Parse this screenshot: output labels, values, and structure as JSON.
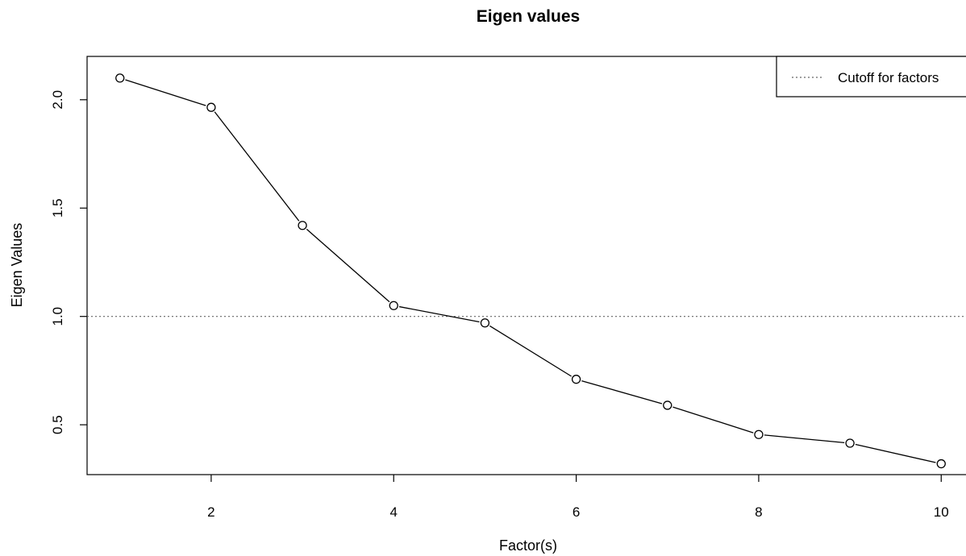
{
  "chart_data": {
    "type": "line",
    "title": "Eigen values",
    "xlabel": "Factor(s)",
    "ylabel": "Eigen Values",
    "x": [
      1,
      2,
      3,
      4,
      5,
      6,
      7,
      8,
      9,
      10
    ],
    "series": [
      {
        "values": [
          2.1,
          1.965,
          1.42,
          1.05,
          0.97,
          0.71,
          0.59,
          0.455,
          0.415,
          0.32
        ]
      }
    ],
    "xlim": [
      0.64,
      10.36
    ],
    "ylim": [
      0.27,
      2.2
    ],
    "x_ticks": [
      2,
      4,
      6,
      8,
      10
    ],
    "y_ticks": [
      0.5,
      1.0,
      1.5,
      2.0
    ],
    "y_tick_labels": [
      "0.5",
      "1.0",
      "1.5",
      "2.0"
    ],
    "reference_line": {
      "y": 1.0,
      "style": "dotted",
      "label": "Cutoff for factors"
    },
    "legend": {
      "position": "top-right",
      "entries": [
        "Cutoff for factors"
      ]
    },
    "grid": false,
    "colors": {
      "line": "#000000",
      "reference": "#666666",
      "axes": "#000000"
    }
  }
}
